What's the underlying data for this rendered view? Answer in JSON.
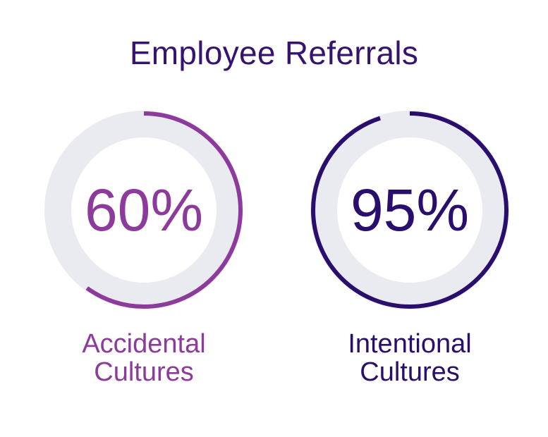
{
  "chart_data": {
    "type": "pie",
    "title": "Employee Referrals",
    "series": [
      {
        "name": "Accidental Cultures",
        "label_lines": [
          "Accidental",
          "Cultures"
        ],
        "value": 60,
        "display": "60%",
        "color": "#8c3a9b"
      },
      {
        "name": "Intentional Cultures",
        "label_lines": [
          "Intentional",
          "Cultures"
        ],
        "value": 95,
        "display": "95%",
        "color": "#2a0e6e"
      }
    ],
    "track_color": "#e9ebf1",
    "max": 100
  }
}
